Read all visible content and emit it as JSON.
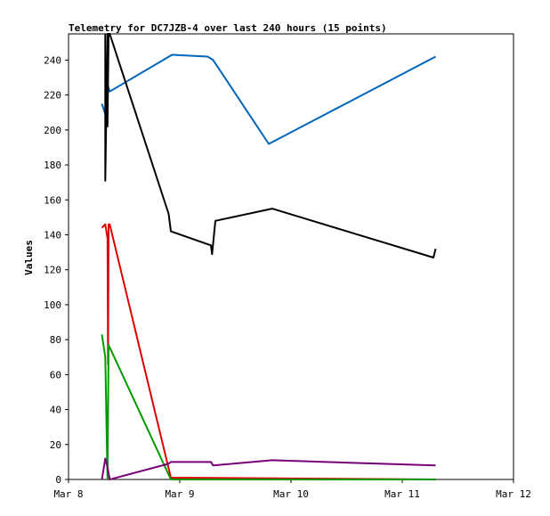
{
  "chart_data": {
    "type": "line",
    "title": "Telemetry for DC7JZB-4 over last 240 hours (15 points)",
    "xlabel": "",
    "ylabel": "Values",
    "xlim": [
      0,
      4
    ],
    "ylim": [
      0,
      255
    ],
    "x_ticks": [
      {
        "value": 0,
        "label": "Mar 8"
      },
      {
        "value": 1,
        "label": "Mar 9"
      },
      {
        "value": 2,
        "label": "Mar 10"
      },
      {
        "value": 3,
        "label": "Mar 11"
      },
      {
        "value": 4,
        "label": "Mar 12"
      }
    ],
    "y_ticks": [
      0,
      20,
      40,
      60,
      80,
      100,
      120,
      140,
      160,
      180,
      200,
      220,
      240
    ],
    "grid": false,
    "legend": "none",
    "series": [
      {
        "color": "#0066bb",
        "points": [
          [
            0.3,
            215
          ],
          [
            0.33,
            209
          ],
          [
            0.35,
            226
          ],
          [
            0.37,
            222
          ],
          [
            0.93,
            243
          ],
          [
            1.25,
            242
          ],
          [
            1.3,
            240
          ],
          [
            1.8,
            192
          ],
          [
            3.3,
            242
          ]
        ]
      },
      {
        "color": "#000000",
        "points": [
          [
            0.33,
            255
          ],
          [
            0.33,
            171
          ],
          [
            0.35,
            255
          ],
          [
            0.35,
            202
          ],
          [
            0.36,
            255
          ],
          [
            0.37,
            255
          ],
          [
            0.9,
            152
          ],
          [
            0.92,
            142
          ],
          [
            1.28,
            134
          ],
          [
            1.29,
            129
          ],
          [
            1.32,
            148
          ],
          [
            1.83,
            155
          ],
          [
            3.28,
            127
          ],
          [
            3.3,
            132
          ]
        ]
      },
      {
        "color": "#dd0000",
        "points": [
          [
            0.3,
            144
          ],
          [
            0.33,
            146
          ],
          [
            0.35,
            138
          ],
          [
            0.355,
            66
          ],
          [
            0.36,
            146
          ],
          [
            0.37,
            146
          ],
          [
            0.92,
            1
          ],
          [
            3.3,
            0
          ]
        ]
      },
      {
        "color": "#009900",
        "points": [
          [
            0.3,
            83
          ],
          [
            0.33,
            70
          ],
          [
            0.35,
            0
          ],
          [
            0.36,
            77
          ],
          [
            0.92,
            0
          ],
          [
            3.3,
            0
          ]
        ]
      },
      {
        "color": "#770077",
        "points": [
          [
            0.3,
            0
          ],
          [
            0.33,
            12
          ],
          [
            0.35,
            7
          ],
          [
            0.37,
            0
          ],
          [
            0.9,
            9
          ],
          [
            0.92,
            10
          ],
          [
            1.28,
            10
          ],
          [
            1.3,
            8
          ],
          [
            1.83,
            11
          ],
          [
            3.3,
            8
          ]
        ]
      }
    ]
  }
}
